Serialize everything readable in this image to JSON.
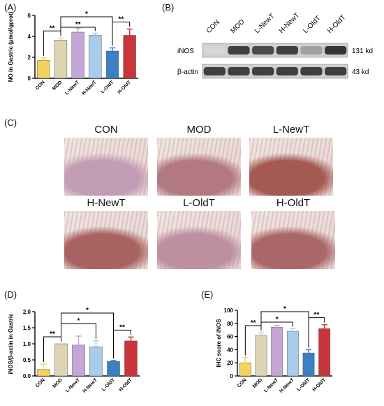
{
  "panels": {
    "A": "(A)",
    "B": "(B)",
    "C": "(C)",
    "D": "(D)",
    "E": "(E)"
  },
  "colors": {
    "CON": "#f5d35a",
    "MOD": "#ded4b3",
    "L-NewT": "#c5a6d6",
    "H-NewT": "#a9cbea",
    "L-OldT": "#3b7fc4",
    "H-OldT": "#c9353a"
  },
  "blot": {
    "lanes": [
      "CON",
      "MOD",
      "L-NewT",
      "H-NewT",
      "L-OldT",
      "H-OldT"
    ],
    "rows": [
      {
        "label": "iNOS",
        "size": "131 kd",
        "intensity": [
          0.1,
          0.8,
          0.75,
          0.8,
          0.35,
          0.85
        ]
      },
      {
        "label": "β-actin",
        "size": "43 kd",
        "intensity": [
          0.8,
          0.8,
          0.8,
          0.8,
          0.8,
          0.8
        ]
      }
    ]
  },
  "ihc": {
    "images": [
      "CON",
      "MOD",
      "L-NewT",
      "H-NewT",
      "L-OldT",
      "H-OldT"
    ],
    "stain_level": [
      0.15,
      0.55,
      0.9,
      0.8,
      0.3,
      0.75
    ]
  },
  "chart_data": [
    {
      "type": "bar",
      "panel": "A",
      "categories": [
        "CON",
        "MOD",
        "L-NewT",
        "H-NewT",
        "L-OldT",
        "H-OldT"
      ],
      "values": [
        1.7,
        3.65,
        4.4,
        4.1,
        2.6,
        4.1
      ],
      "errors": [
        0.25,
        0.2,
        0.35,
        0.2,
        0.3,
        0.6
      ],
      "ylabel": "NO in Gastric (μmol/gprot)",
      "ylim": [
        0,
        6
      ],
      "yticks": [
        "0",
        "2",
        "4",
        "6"
      ],
      "significance": [
        {
          "from": "CON",
          "to": "MOD",
          "label": "**"
        },
        {
          "from": "MOD",
          "to": "H-NewT",
          "label": "**"
        },
        {
          "from": "MOD",
          "to": "L-OldT",
          "label": "*"
        },
        {
          "from": "L-OldT",
          "to": "H-OldT",
          "label": "**"
        }
      ]
    },
    {
      "type": "bar",
      "panel": "D",
      "categories": [
        "CON",
        "MOD",
        "L-NewT",
        "H-NewT",
        "L-OldT",
        "H-OldT"
      ],
      "values": [
        0.2,
        1.0,
        0.96,
        0.91,
        0.45,
        1.09
      ],
      "errors": [
        0.17,
        0.0,
        0.28,
        0.18,
        0.03,
        0.12
      ],
      "ylabel": "iNOS/β-actin in Gastric",
      "ylim": [
        0,
        2.0
      ],
      "yticks": [
        "0.0",
        "0.5",
        "1.0",
        "1.5",
        "2.0"
      ],
      "significance": [
        {
          "from": "CON",
          "to": "MOD",
          "label": "**"
        },
        {
          "from": "MOD",
          "to": "H-NewT",
          "label": "*"
        },
        {
          "from": "MOD",
          "to": "L-OldT",
          "label": "*"
        },
        {
          "from": "L-OldT",
          "to": "H-OldT",
          "label": "**"
        }
      ]
    },
    {
      "type": "bar",
      "panel": "E",
      "categories": [
        "CON",
        "MOD",
        "L-NewT",
        "H-NewT",
        "L-OldT",
        "H-OldT"
      ],
      "values": [
        20,
        62,
        74,
        68,
        35,
        72
      ],
      "errors": [
        8,
        4,
        3,
        4,
        5,
        6
      ],
      "ylabel": "IHC score of iNOS",
      "ylim": [
        0,
        100
      ],
      "yticks": [
        "0",
        "20",
        "40",
        "60",
        "80",
        "100"
      ],
      "significance": [
        {
          "from": "CON",
          "to": "MOD",
          "label": "**"
        },
        {
          "from": "MOD",
          "to": "H-NewT",
          "label": "*"
        },
        {
          "from": "MOD",
          "to": "L-OldT",
          "label": "*"
        },
        {
          "from": "L-OldT",
          "to": "H-OldT",
          "label": "**"
        }
      ]
    }
  ]
}
